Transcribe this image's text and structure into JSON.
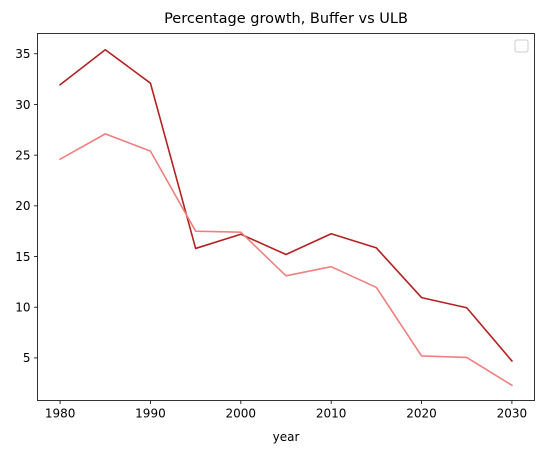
{
  "chart_data": {
    "type": "line",
    "title": "Percentage growth, Buffer vs ULB",
    "xlabel": "year",
    "ylabel": "",
    "x": [
      1980,
      1985,
      1990,
      1995,
      2000,
      2005,
      2010,
      2015,
      2020,
      2025,
      2030
    ],
    "xlim": [
      1977.5,
      2032.5
    ],
    "ylim": [
      0.8,
      37.0
    ],
    "xticks": [
      1980,
      1990,
      2000,
      2010,
      2020,
      2030
    ],
    "yticks": [
      5,
      10,
      15,
      20,
      25,
      30,
      35
    ],
    "grid": false,
    "legend": {
      "placement": "top-right",
      "entries": []
    },
    "series": [
      {
        "color": "#b22222",
        "values": [
          31.95,
          35.4,
          32.1,
          15.8,
          17.2,
          15.2,
          17.25,
          15.85,
          10.95,
          9.95,
          4.7
        ]
      },
      {
        "color": "#f08080",
        "values": [
          24.6,
          27.1,
          25.4,
          17.5,
          17.4,
          13.1,
          14.0,
          11.95,
          5.2,
          5.05,
          2.3
        ]
      }
    ]
  }
}
